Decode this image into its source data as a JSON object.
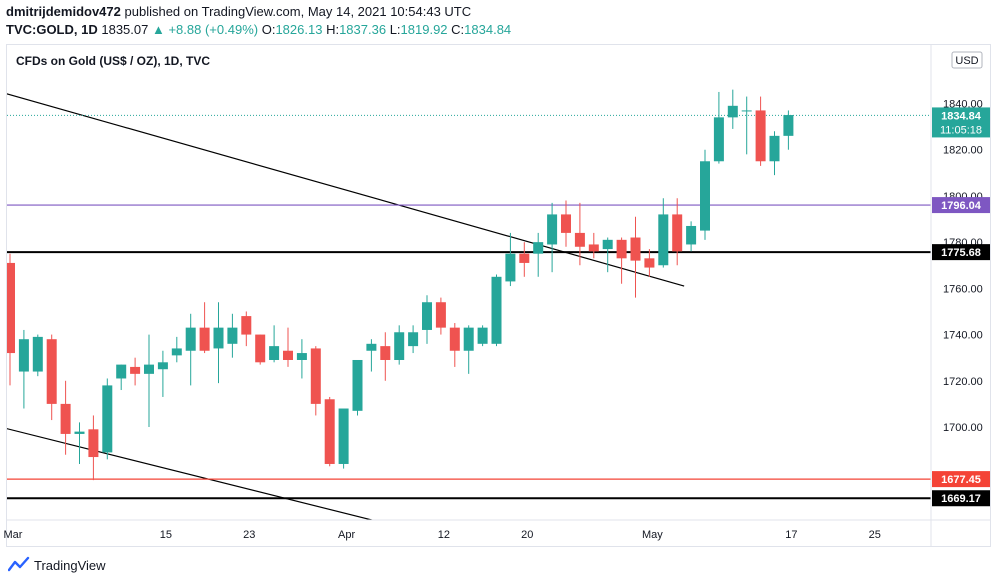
{
  "header": {
    "author": "dmitrijdemidov472",
    "published_text": "published on TradingView.com, May 14, 2021 10:54:43 UTC",
    "symbol": "TVC:GOLD, 1D",
    "last": "1835.07",
    "change": "▲ +8.88 (+0.49%)",
    "o_label": "O:",
    "o_value": "1826.13",
    "h_label": "H:",
    "h_value": "1837.36",
    "l_label": "L:",
    "l_value": "1819.92",
    "c_label": "C:",
    "c_value": "1834.84"
  },
  "footer": {
    "brand": "TradingView"
  },
  "colors": {
    "up": "#26a69a",
    "down": "#ef5350",
    "purple": "#7e57c2",
    "hline_red": "#f44336",
    "black": "#000000"
  },
  "chart_data": {
    "type": "candlestick",
    "title": "CFDs on Gold (US$ / OZ), 1D, TVC",
    "currency_label": "USD",
    "ylim": [
      1660,
      1860
    ],
    "y_ticks": [
      "1700.00",
      "1720.00",
      "1740.00",
      "1760.00",
      "1780.00",
      "1800.00",
      "1820.00",
      "1840.00"
    ],
    "x_ticks": [
      {
        "label": "Mar",
        "bar": 0
      },
      {
        "label": "15",
        "bar": 11
      },
      {
        "label": "23",
        "bar": 17
      },
      {
        "label": "Apr",
        "bar": 24
      },
      {
        "label": "12",
        "bar": 31
      },
      {
        "label": "20",
        "bar": 37
      },
      {
        "label": "May",
        "bar": 46
      },
      {
        "label": "17",
        "bar": 56
      },
      {
        "label": "25",
        "bar": 62
      }
    ],
    "candles": [
      {
        "o": 1771,
        "h": 1775,
        "l": 1718,
        "c": 1732
      },
      {
        "o": 1724,
        "h": 1742,
        "l": 1708,
        "c": 1738
      },
      {
        "o": 1724,
        "h": 1740,
        "l": 1722,
        "c": 1739
      },
      {
        "o": 1738,
        "h": 1740,
        "l": 1703,
        "c": 1710
      },
      {
        "o": 1710,
        "h": 1720,
        "l": 1688,
        "c": 1697
      },
      {
        "o": 1697,
        "h": 1702,
        "l": 1684,
        "c": 1698
      },
      {
        "o": 1699,
        "h": 1705,
        "l": 1677,
        "c": 1687
      },
      {
        "o": 1689,
        "h": 1721,
        "l": 1686,
        "c": 1718
      },
      {
        "o": 1721,
        "h": 1727,
        "l": 1716,
        "c": 1727
      },
      {
        "o": 1726,
        "h": 1730,
        "l": 1718,
        "c": 1723
      },
      {
        "o": 1723,
        "h": 1740,
        "l": 1700,
        "c": 1727
      },
      {
        "o": 1725,
        "h": 1733,
        "l": 1713,
        "c": 1728
      },
      {
        "o": 1731,
        "h": 1739,
        "l": 1728,
        "c": 1734
      },
      {
        "o": 1733,
        "h": 1749,
        "l": 1718,
        "c": 1743
      },
      {
        "o": 1743,
        "h": 1754,
        "l": 1732,
        "c": 1733
      },
      {
        "o": 1734,
        "h": 1754,
        "l": 1719,
        "c": 1743
      },
      {
        "o": 1736,
        "h": 1749,
        "l": 1730,
        "c": 1743
      },
      {
        "o": 1748,
        "h": 1750,
        "l": 1735,
        "c": 1740
      },
      {
        "o": 1740,
        "h": 1740,
        "l": 1727,
        "c": 1728
      },
      {
        "o": 1729,
        "h": 1744,
        "l": 1728,
        "c": 1735
      },
      {
        "o": 1733,
        "h": 1743,
        "l": 1726,
        "c": 1729
      },
      {
        "o": 1729,
        "h": 1738,
        "l": 1721,
        "c": 1732
      },
      {
        "o": 1734,
        "h": 1735,
        "l": 1705,
        "c": 1710
      },
      {
        "o": 1712,
        "h": 1713,
        "l": 1683,
        "c": 1684
      },
      {
        "o": 1684,
        "h": 1707,
        "l": 1682,
        "c": 1708
      },
      {
        "o": 1707,
        "h": 1729,
        "l": 1705,
        "c": 1729
      },
      {
        "o": 1733,
        "h": 1738,
        "l": 1724,
        "c": 1736
      },
      {
        "o": 1735,
        "h": 1741,
        "l": 1720,
        "c": 1729
      },
      {
        "o": 1729,
        "h": 1744,
        "l": 1727,
        "c": 1741
      },
      {
        "o": 1735,
        "h": 1744,
        "l": 1732,
        "c": 1741
      },
      {
        "o": 1742,
        "h": 1757,
        "l": 1736,
        "c": 1754
      },
      {
        "o": 1754,
        "h": 1756,
        "l": 1740,
        "c": 1743
      },
      {
        "o": 1743,
        "h": 1745,
        "l": 1726,
        "c": 1733
      },
      {
        "o": 1733,
        "h": 1744,
        "l": 1723,
        "c": 1743
      },
      {
        "o": 1736,
        "h": 1744,
        "l": 1735,
        "c": 1743
      },
      {
        "o": 1736,
        "h": 1766,
        "l": 1735,
        "c": 1765
      },
      {
        "o": 1763,
        "h": 1784,
        "l": 1761,
        "c": 1775
      },
      {
        "o": 1775,
        "h": 1780,
        "l": 1765,
        "c": 1771
      },
      {
        "o": 1775,
        "h": 1784,
        "l": 1765,
        "c": 1780
      },
      {
        "o": 1779,
        "h": 1797,
        "l": 1767,
        "c": 1792
      },
      {
        "o": 1792,
        "h": 1798,
        "l": 1778,
        "c": 1784
      },
      {
        "o": 1784,
        "h": 1797,
        "l": 1770,
        "c": 1778
      },
      {
        "o": 1779,
        "h": 1784,
        "l": 1773,
        "c": 1776
      },
      {
        "o": 1777,
        "h": 1782,
        "l": 1767,
        "c": 1781
      },
      {
        "o": 1781,
        "h": 1782,
        "l": 1762,
        "c": 1773
      },
      {
        "o": 1782,
        "h": 1791,
        "l": 1756,
        "c": 1772
      },
      {
        "o": 1773,
        "h": 1777,
        "l": 1765,
        "c": 1769
      },
      {
        "o": 1770,
        "h": 1799,
        "l": 1769,
        "c": 1792
      },
      {
        "o": 1792,
        "h": 1799,
        "l": 1770,
        "c": 1776
      },
      {
        "o": 1779,
        "h": 1789,
        "l": 1776,
        "c": 1787
      },
      {
        "o": 1785,
        "h": 1820,
        "l": 1781,
        "c": 1815
      },
      {
        "o": 1815,
        "h": 1845,
        "l": 1814,
        "c": 1834
      },
      {
        "o": 1834,
        "h": 1846,
        "l": 1829,
        "c": 1839
      },
      {
        "o": 1837,
        "h": 1843,
        "l": 1818,
        "c": 1837
      },
      {
        "o": 1837,
        "h": 1843,
        "l": 1813,
        "c": 1815
      },
      {
        "o": 1815,
        "h": 1828,
        "l": 1809,
        "c": 1826
      },
      {
        "o": 1826,
        "h": 1837,
        "l": 1820,
        "c": 1835
      }
    ],
    "h_lines": [
      {
        "name": "current-price-line",
        "value": 1834.84,
        "label": "1834.84",
        "sub_label": "11:05:18",
        "color": "#26a69a",
        "style": "dotted"
      },
      {
        "name": "purple-level",
        "value": 1796.04,
        "label": "1796.04",
        "color": "#7e57c2",
        "style": "solid"
      },
      {
        "name": "black-level-upper",
        "value": 1775.68,
        "label": "1775.68",
        "color": "#000000",
        "style": "solid-thick"
      },
      {
        "name": "red-level",
        "value": 1677.45,
        "label": "1677.45",
        "color": "#f44336",
        "style": "solid"
      },
      {
        "name": "black-level-lower",
        "value": 1669.17,
        "label": "1669.17",
        "color": "#000000",
        "style": "solid-thick"
      }
    ],
    "trend_lines": [
      {
        "name": "upper-trend-line",
        "x1": -0.7,
        "y1": 1845,
        "x2": 48.5,
        "y2": 1761
      },
      {
        "name": "lower-trend-line",
        "x1": -0.7,
        "y1": 1700,
        "x2": 27.2,
        "y2": 1658
      }
    ]
  }
}
